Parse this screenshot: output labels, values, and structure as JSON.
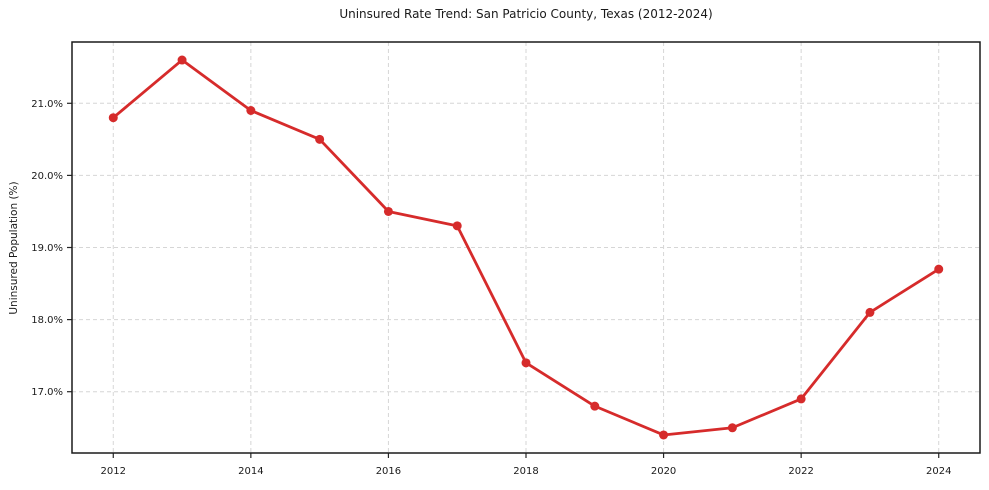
{
  "chart_data": {
    "type": "line",
    "title": "Uninsured Rate Trend: San Patricio County, Texas (2012-2024)",
    "xlabel": "",
    "ylabel": "Uninsured Population (%)",
    "x": [
      2012,
      2013,
      2014,
      2015,
      2016,
      2017,
      2018,
      2019,
      2020,
      2021,
      2022,
      2023,
      2024
    ],
    "values": [
      20.8,
      21.6,
      20.9,
      20.5,
      19.5,
      19.3,
      17.4,
      16.8,
      16.4,
      16.5,
      16.9,
      18.1,
      18.7
    ],
    "x_ticks": [
      2012,
      2014,
      2016,
      2018,
      2020,
      2022,
      2024
    ],
    "y_tick_values": [
      17,
      18,
      19,
      20,
      21
    ],
    "y_tick_labels": [
      "17.0%",
      "18.0%",
      "19.0%",
      "20.0%",
      "21.0%"
    ],
    "xlim": [
      2011.4,
      2024.6
    ],
    "ylim": [
      16.15,
      21.85
    ],
    "grid": true,
    "legend": "none",
    "line_color": "#d62b2b",
    "marker": "circle"
  }
}
